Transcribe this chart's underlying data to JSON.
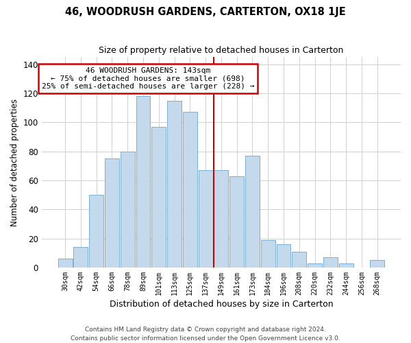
{
  "title": "46, WOODRUSH GARDENS, CARTERTON, OX18 1JE",
  "subtitle": "Size of property relative to detached houses in Carterton",
  "xlabel": "Distribution of detached houses by size in Carterton",
  "ylabel": "Number of detached properties",
  "footnote1": "Contains HM Land Registry data © Crown copyright and database right 2024.",
  "footnote2": "Contains public sector information licensed under the Open Government Licence v3.0.",
  "bar_labels": [
    "30sqm",
    "42sqm",
    "54sqm",
    "66sqm",
    "78sqm",
    "89sqm",
    "101sqm",
    "113sqm",
    "125sqm",
    "137sqm",
    "149sqm",
    "161sqm",
    "173sqm",
    "184sqm",
    "196sqm",
    "208sqm",
    "220sqm",
    "232sqm",
    "244sqm",
    "256sqm",
    "268sqm"
  ],
  "bar_values": [
    6,
    14,
    50,
    75,
    80,
    118,
    97,
    115,
    107,
    67,
    67,
    63,
    77,
    19,
    16,
    11,
    3,
    7,
    3,
    0,
    5
  ],
  "bar_color": "#c5d9ed",
  "bar_edge_color": "#7aafd4",
  "vline_x": 9.5,
  "vline_color": "#cc0000",
  "ylim": [
    0,
    145
  ],
  "yticks": [
    0,
    20,
    40,
    60,
    80,
    100,
    120,
    140
  ],
  "annotation_title": "46 WOODRUSH GARDENS: 143sqm",
  "annotation_line1": "← 75% of detached houses are smaller (698)",
  "annotation_line2": "25% of semi-detached houses are larger (228) →",
  "annotation_box_color": "#ffffff",
  "annotation_box_edge": "#cc0000",
  "grid_color": "#d0d0d0"
}
